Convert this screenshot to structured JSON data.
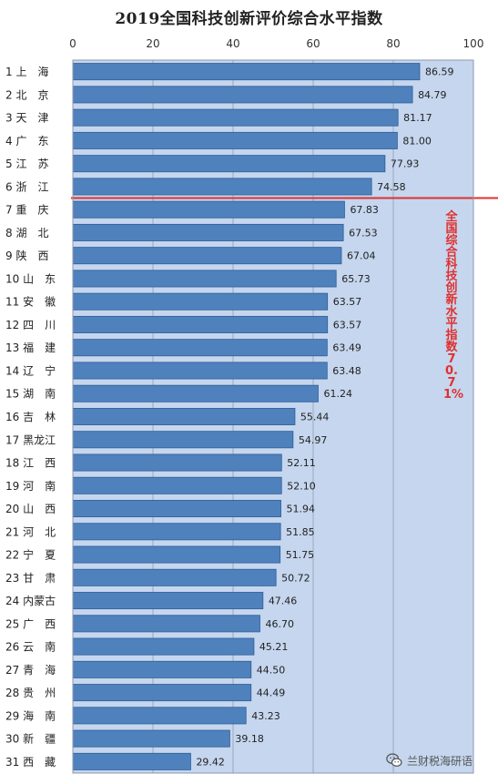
{
  "chart_data": {
    "type": "bar",
    "orientation": "horizontal",
    "title": "2019全国科技创新评价综合水平指数",
    "xlim": [
      0,
      100
    ],
    "x_ticks": [
      0,
      20,
      40,
      60,
      80,
      100
    ],
    "categories": [
      "1 上　海",
      "2 北　京",
      "3 天　津",
      "4 广　东",
      "5 江　苏",
      "6 浙　江",
      "7 重　庆",
      "8 湖　北",
      "9 陕　西",
      "10 山　东",
      "11 安　徽",
      "12 四　川",
      "13 福　建",
      "14 辽　宁",
      "15 湖　南",
      "16 吉　林",
      "17 黑龙江",
      "18 江　西",
      "19 河　南",
      "20 山　西",
      "21 河　北",
      "22 宁　夏",
      "23 甘　肃",
      "24 内蒙古",
      "25 广　西",
      "26 云　南",
      "27 青　海",
      "28 贵　州",
      "29 海　南",
      "30 新　疆",
      "31 西　藏"
    ],
    "values": [
      86.59,
      84.79,
      81.17,
      81.0,
      77.93,
      74.58,
      67.83,
      67.53,
      67.04,
      65.73,
      63.57,
      63.57,
      63.49,
      63.48,
      61.24,
      55.44,
      54.97,
      52.11,
      52.1,
      51.94,
      51.85,
      51.75,
      50.72,
      47.46,
      46.7,
      45.21,
      44.5,
      44.49,
      43.23,
      39.18,
      29.42
    ],
    "value_labels": [
      "86.59",
      "84.79",
      "81.17",
      "81.00",
      "77.93",
      "74.58",
      "67.83",
      "67.53",
      "67.04",
      "65.73",
      "63.57",
      "63.57",
      "63.49",
      "63.48",
      "61.24",
      "55.44",
      "54.97",
      "52.11",
      "52.10",
      "51.94",
      "51.85",
      "51.75",
      "50.72",
      "47.46",
      "46.70",
      "45.21",
      "44.50",
      "44.49",
      "43.23",
      "39.18",
      "29.42"
    ],
    "reference_line": {
      "label": "全国综合科技创新水平指数70.71%",
      "after_category_index": 5,
      "color": "#e0302e"
    },
    "grid": true,
    "colors": {
      "bar": "#4f81bd",
      "bar_border": "#2f5e97",
      "plot_bg": "#c5d6ee",
      "grid": "#9aa8ba"
    }
  },
  "watermark": {
    "text": "兰财税海研语"
  }
}
